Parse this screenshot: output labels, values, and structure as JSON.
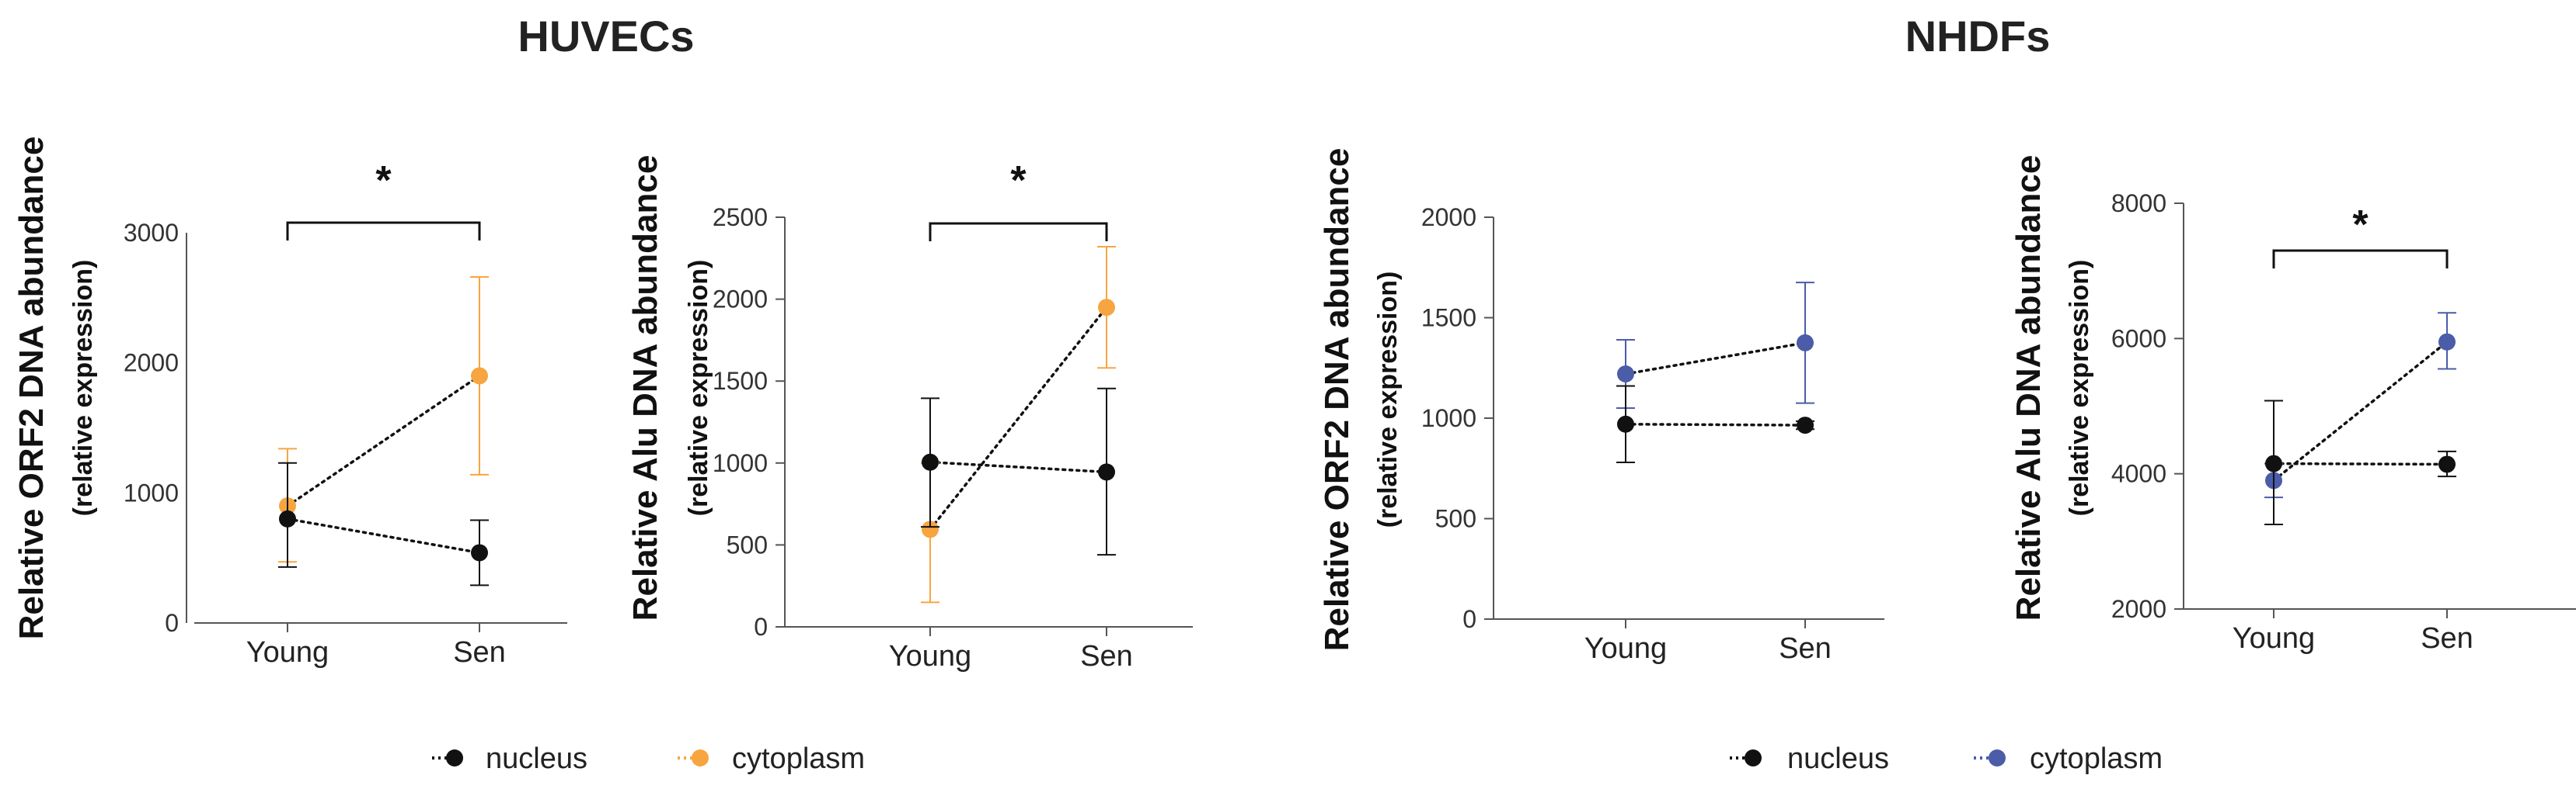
{
  "panel_titles": [
    "HUVECs",
    "NHDFs"
  ],
  "colors": {
    "nucleus": "#111111",
    "huvec_cytoplasm": "#f7a541",
    "nhdf_cytoplasm": "#4b5ca8",
    "axis": "#555555"
  },
  "legends": [
    {
      "nucleus_label": "nucleus",
      "cytoplasm_label": "cytoplasm"
    },
    {
      "nucleus_label": "nucleus",
      "cytoplasm_label": "cytoplasm"
    }
  ],
  "chart_data": [
    {
      "type": "line",
      "panel": "HUVECs",
      "ylabel": "Relative ORF2 DNA abundance",
      "ylabel2": "(relative expression)",
      "categories": [
        "Young",
        "Sen"
      ],
      "ylim": [
        0,
        3000
      ],
      "yticks": [
        "0",
        "1000",
        "2000",
        "3000"
      ],
      "significance": "*",
      "series": [
        {
          "name": "nucleus",
          "values": [
            800,
            540
          ],
          "err_low": [
            430,
            290
          ],
          "err_high": [
            1230,
            790
          ],
          "color": "#111111"
        },
        {
          "name": "cytoplasm",
          "values": [
            900,
            1900
          ],
          "err_low": [
            470,
            1140
          ],
          "err_high": [
            1340,
            2660
          ],
          "color": "#f7a541"
        }
      ]
    },
    {
      "type": "line",
      "panel": "HUVECs",
      "ylabel": "Relative Alu DNA abundance",
      "ylabel2": "(relative expression)",
      "categories": [
        "Young",
        "Sen"
      ],
      "ylim": [
        0,
        2500
      ],
      "yticks": [
        "0",
        "500",
        "1000",
        "1500",
        "2000",
        "2500"
      ],
      "significance": "*",
      "series": [
        {
          "name": "nucleus",
          "values": [
            1005,
            945
          ],
          "err_low": [
            610,
            440
          ],
          "err_high": [
            1395,
            1455
          ],
          "color": "#111111"
        },
        {
          "name": "cytoplasm",
          "values": [
            595,
            1950
          ],
          "err_low": [
            150,
            1580
          ],
          "err_high": [
            1000,
            2320
          ],
          "color": "#f7a541"
        }
      ]
    },
    {
      "type": "line",
      "panel": "NHDFs",
      "ylabel": "Relative ORF2 DNA abundance",
      "ylabel2": "(relative expression)",
      "categories": [
        "Young",
        "Sen"
      ],
      "ylim": [
        0,
        2000
      ],
      "yticks": [
        "0",
        "500",
        "1000",
        "1500",
        "2000"
      ],
      "significance": "",
      "series": [
        {
          "name": "nucleus",
          "values": [
            970,
            965
          ],
          "err_low": [
            780,
            945
          ],
          "err_high": [
            1160,
            985
          ],
          "color": "#111111"
        },
        {
          "name": "cytoplasm",
          "values": [
            1220,
            1375
          ],
          "err_low": [
            1050,
            1075
          ],
          "err_high": [
            1390,
            1675
          ],
          "color": "#4b5ca8"
        }
      ]
    },
    {
      "type": "line",
      "panel": "NHDFs",
      "ylabel": "Relative Alu DNA abundance",
      "ylabel2": "(relative expression)",
      "categories": [
        "Young",
        "Sen"
      ],
      "ylim": [
        2000,
        8000
      ],
      "yticks": [
        "2000",
        "4000",
        "6000",
        "8000"
      ],
      "significance": "*",
      "series": [
        {
          "name": "nucleus",
          "values": [
            4150,
            4140
          ],
          "err_low": [
            3250,
            3960
          ],
          "err_high": [
            5080,
            4330
          ],
          "color": "#111111"
        },
        {
          "name": "cytoplasm",
          "values": [
            3900,
            5950
          ],
          "err_low": [
            3650,
            5550
          ],
          "err_high": [
            4150,
            6380
          ],
          "color": "#4b5ca8"
        }
      ]
    }
  ]
}
